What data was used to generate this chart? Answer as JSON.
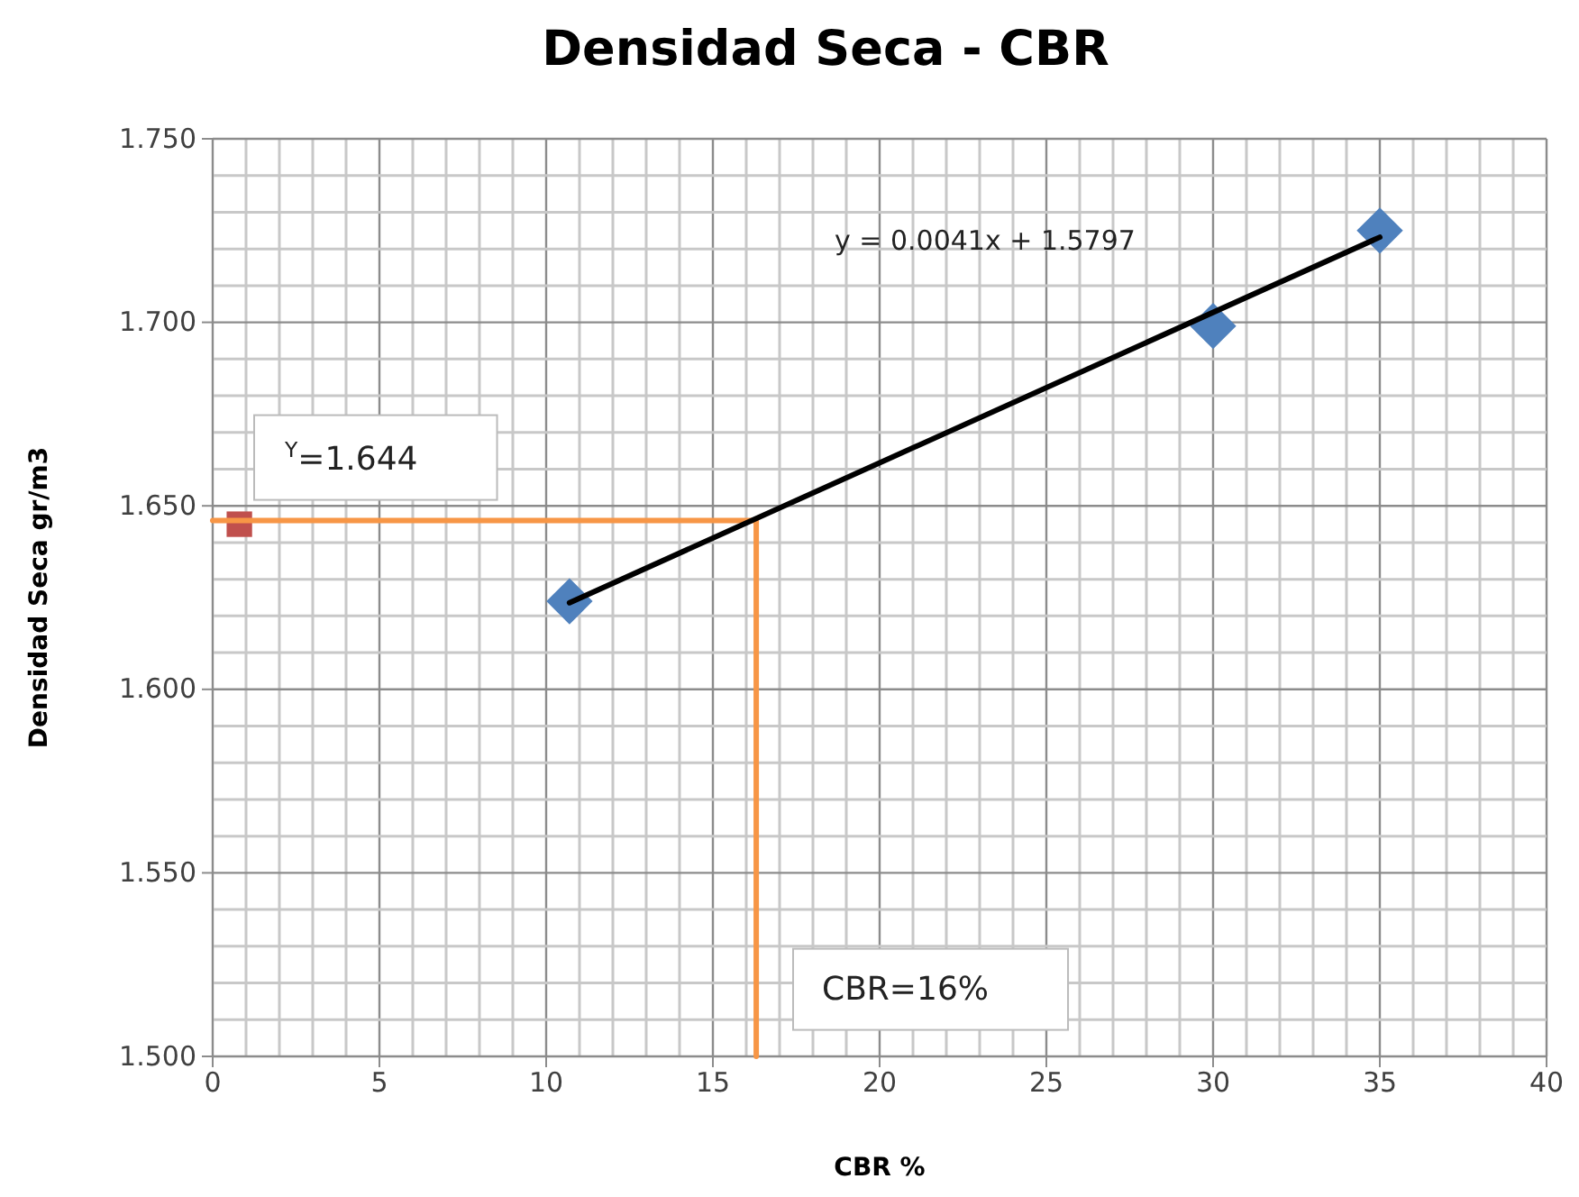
{
  "chart_data": {
    "type": "scatter",
    "title": "Densidad Seca - CBR",
    "xlabel": "CBR %",
    "ylabel": "Densidad Seca gr/m3",
    "xlim": [
      0,
      40
    ],
    "xticks": [
      0,
      5,
      10,
      15,
      20,
      25,
      30,
      35,
      40
    ],
    "ylim": [
      1.5,
      1.75
    ],
    "yticks": [
      {
        "value": 1.5,
        "label": "1.500"
      },
      {
        "value": 1.55,
        "label": "1.550"
      },
      {
        "value": 1.6,
        "label": "1.600"
      },
      {
        "value": 1.65,
        "label": "1.650"
      },
      {
        "value": 1.7,
        "label": "1.700"
      },
      {
        "value": 1.75,
        "label": "1.750"
      }
    ],
    "grid": true,
    "series": [
      {
        "type": "line",
        "color": "#f79646",
        "x": [
          0,
          16.3,
          16.3
        ],
        "values": [
          1.646,
          1.646,
          1.5
        ],
        "marker": "none"
      },
      {
        "type": "line",
        "color": "#000000",
        "x": [
          10.7,
          35
        ],
        "values": [
          1.6236,
          1.7232
        ],
        "marker": "none"
      },
      {
        "color": "#4f81bd",
        "x": [
          10.7,
          30,
          35
        ],
        "values": [
          1.624,
          1.699,
          1.725
        ],
        "marker": "diamond"
      },
      {
        "color": "#c0504d",
        "x": [
          0.8
        ],
        "values": [
          1.645
        ],
        "marker": "square"
      }
    ],
    "annotations": [
      "y = 0.0041x + 1.5797",
      "$^{Y}$=1.644",
      "CBR=16%"
    ]
  }
}
